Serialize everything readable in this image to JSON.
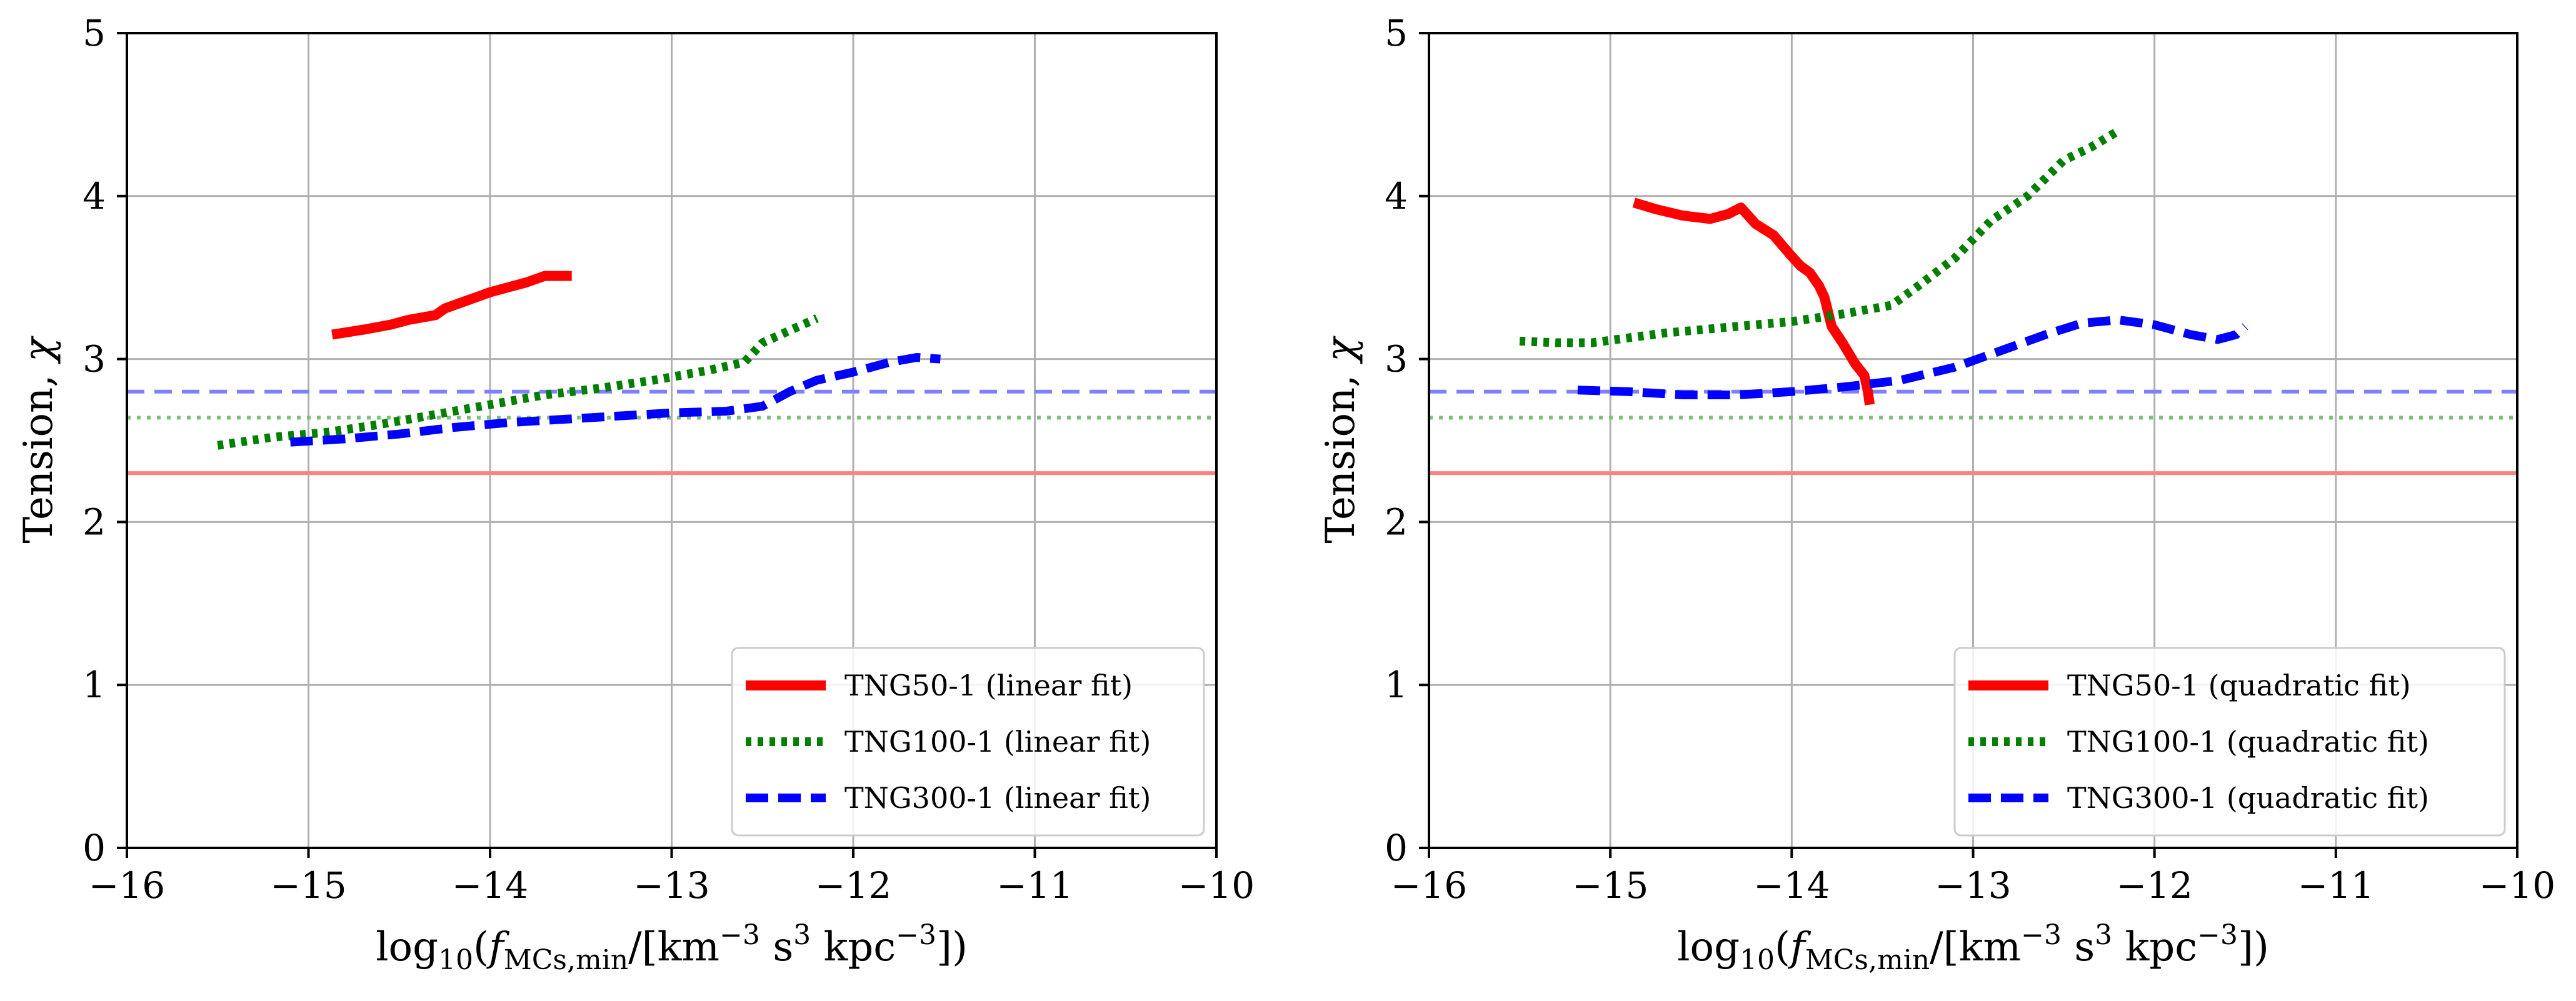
{
  "chart_data": [
    {
      "type": "line",
      "xlabel": "log10(f_MCs,min/[km^-3 s^3 kpc^-3])",
      "ylabel": "Tension, χ",
      "xlim": [
        -16,
        -10
      ],
      "ylim": [
        0,
        5
      ],
      "xticks": [
        "−16",
        "−15",
        "−14",
        "−13",
        "−12",
        "−11",
        "−10"
      ],
      "yticks": [
        "0",
        "1",
        "2",
        "3",
        "4",
        "5"
      ],
      "grid": true,
      "legend_position": "lower-right",
      "hlines": [
        {
          "y": 2.3,
          "color": "#ff8080",
          "style": "solid"
        },
        {
          "y": 2.64,
          "color": "#7fbf7f",
          "style": "dotted"
        },
        {
          "y": 2.8,
          "color": "#8080ff",
          "style": "dashed"
        }
      ],
      "series": [
        {
          "name": "TNG50-1 (linear fit)",
          "color": "#ff0000",
          "style": "solid",
          "x": [
            -14.87,
            -14.7,
            -14.55,
            -14.45,
            -14.3,
            -14.25,
            -14.15,
            -14.0,
            -13.9,
            -13.8,
            -13.7,
            -13.62,
            -13.55
          ],
          "y": [
            3.15,
            3.18,
            3.21,
            3.24,
            3.27,
            3.31,
            3.35,
            3.41,
            3.44,
            3.47,
            3.51,
            3.51,
            3.51
          ]
        },
        {
          "name": "TNG100-1 (linear fit)",
          "color": "#007f00",
          "style": "dotted",
          "x": [
            -15.5,
            -15.2,
            -14.9,
            -14.6,
            -14.3,
            -14.0,
            -13.7,
            -13.4,
            -13.1,
            -12.8,
            -12.6,
            -12.5,
            -12.2
          ],
          "y": [
            2.47,
            2.52,
            2.55,
            2.6,
            2.66,
            2.72,
            2.78,
            2.82,
            2.87,
            2.93,
            2.98,
            3.1,
            3.25
          ]
        },
        {
          "name": "TNG300-1 (linear fit)",
          "color": "#0000ff",
          "style": "dashed",
          "x": [
            -15.1,
            -14.8,
            -14.5,
            -14.2,
            -13.9,
            -13.6,
            -13.3,
            -13.0,
            -12.7,
            -12.5,
            -12.35,
            -12.2,
            -12.0,
            -11.8,
            -11.65,
            -11.52
          ],
          "y": [
            2.49,
            2.51,
            2.54,
            2.58,
            2.61,
            2.63,
            2.65,
            2.67,
            2.68,
            2.71,
            2.8,
            2.87,
            2.92,
            2.98,
            3.01,
            3.0
          ]
        }
      ]
    },
    {
      "type": "line",
      "xlabel": "log10(f_MCs,min/[km^-3 s^3 kpc^-3])",
      "ylabel": "Tension, χ",
      "xlim": [
        -16,
        -10
      ],
      "ylim": [
        0,
        5
      ],
      "xticks": [
        "−16",
        "−15",
        "−14",
        "−13",
        "−12",
        "−11",
        "−10"
      ],
      "yticks": [
        "0",
        "1",
        "2",
        "3",
        "4",
        "5"
      ],
      "grid": true,
      "legend_position": "lower-right",
      "hlines": [
        {
          "y": 2.3,
          "color": "#ff8080",
          "style": "solid"
        },
        {
          "y": 2.64,
          "color": "#7fbf7f",
          "style": "dotted"
        },
        {
          "y": 2.8,
          "color": "#8080ff",
          "style": "dashed"
        }
      ],
      "series": [
        {
          "name": "TNG50-1 (quadratic fit)",
          "color": "#ff0000",
          "style": "solid",
          "x": [
            -14.87,
            -14.75,
            -14.6,
            -14.45,
            -14.35,
            -14.28,
            -14.2,
            -14.1,
            -14.0,
            -13.95,
            -13.9,
            -13.85,
            -13.82,
            -13.78,
            -13.72,
            -13.65,
            -13.6,
            -13.58,
            -13.57
          ],
          "y": [
            3.96,
            3.92,
            3.88,
            3.86,
            3.89,
            3.93,
            3.83,
            3.76,
            3.63,
            3.57,
            3.53,
            3.45,
            3.38,
            3.2,
            3.1,
            2.97,
            2.9,
            2.8,
            2.72
          ]
        },
        {
          "name": "TNG100-1 (quadratic fit)",
          "color": "#007f00",
          "style": "dotted",
          "x": [
            -15.5,
            -15.3,
            -15.1,
            -14.9,
            -14.7,
            -14.5,
            -14.3,
            -14.0,
            -13.7,
            -13.45,
            -13.3,
            -13.1,
            -12.9,
            -12.7,
            -12.5,
            -12.35,
            -12.2
          ],
          "y": [
            3.11,
            3.1,
            3.1,
            3.13,
            3.16,
            3.18,
            3.2,
            3.23,
            3.28,
            3.33,
            3.45,
            3.62,
            3.85,
            4.0,
            4.22,
            4.3,
            4.4
          ]
        },
        {
          "name": "TNG300-1 (quadratic fit)",
          "color": "#0000ff",
          "style": "dashed",
          "x": [
            -15.18,
            -14.9,
            -14.6,
            -14.3,
            -14.0,
            -13.7,
            -13.4,
            -13.1,
            -12.85,
            -12.6,
            -12.4,
            -12.2,
            -12.0,
            -11.8,
            -11.65,
            -11.55,
            -11.5
          ],
          "y": [
            2.81,
            2.8,
            2.78,
            2.78,
            2.8,
            2.83,
            2.87,
            2.95,
            3.05,
            3.15,
            3.22,
            3.24,
            3.21,
            3.15,
            3.12,
            3.15,
            3.2
          ]
        }
      ]
    }
  ]
}
